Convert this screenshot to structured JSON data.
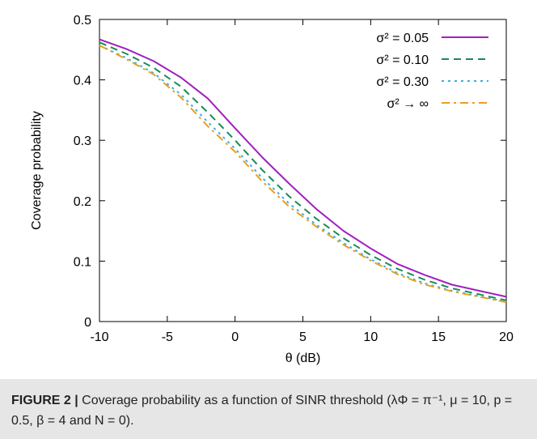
{
  "chart_data": {
    "type": "line",
    "xlabel": "θ (dB)",
    "ylabel": "Coverage probability",
    "xlim": [
      -10,
      20
    ],
    "ylim": [
      0,
      0.5
    ],
    "x_ticks": [
      "-10",
      "-5",
      "0",
      "5",
      "10",
      "15",
      "20"
    ],
    "y_ticks": [
      "0",
      "0.1",
      "0.2",
      "0.3",
      "0.4",
      "0.5"
    ],
    "grid": false,
    "legend_position": "top-right",
    "x": [
      -10,
      -8,
      -6,
      -4,
      -2,
      0,
      2,
      4,
      6,
      8,
      10,
      12,
      14,
      16,
      18,
      20
    ],
    "series": [
      {
        "name": "σ² = 0.05",
        "color": "#a020c0",
        "dash": "solid",
        "values": [
          0.467,
          0.451,
          0.431,
          0.404,
          0.369,
          0.32,
          0.272,
          0.228,
          0.186,
          0.15,
          0.121,
          0.095,
          0.077,
          0.061,
          0.051,
          0.041
        ]
      },
      {
        "name": "σ² = 0.10",
        "color": "#1a8a5a",
        "dash": "dashed",
        "values": [
          0.462,
          0.443,
          0.42,
          0.389,
          0.346,
          0.3,
          0.251,
          0.207,
          0.17,
          0.138,
          0.11,
          0.087,
          0.069,
          0.055,
          0.045,
          0.035
        ]
      },
      {
        "name": "σ² = 0.30",
        "color": "#3aaee0",
        "dash": "dotted",
        "values": [
          0.457,
          0.436,
          0.411,
          0.376,
          0.33,
          0.286,
          0.238,
          0.195,
          0.16,
          0.13,
          0.103,
          0.08,
          0.063,
          0.051,
          0.042,
          0.033
        ]
      },
      {
        "name": "σ² → ∞",
        "color": "#e8a020",
        "dash": "dashdot",
        "values": [
          0.457,
          0.434,
          0.409,
          0.371,
          0.323,
          0.281,
          0.232,
          0.19,
          0.157,
          0.127,
          0.101,
          0.078,
          0.061,
          0.05,
          0.041,
          0.032
        ]
      }
    ]
  },
  "caption": {
    "label": "FIGURE 2 |",
    "text": "Coverage probability as a function of SINR threshold (λΦ = π⁻¹, μ = 10, p = 0.5, β = 4 and N = 0)."
  }
}
